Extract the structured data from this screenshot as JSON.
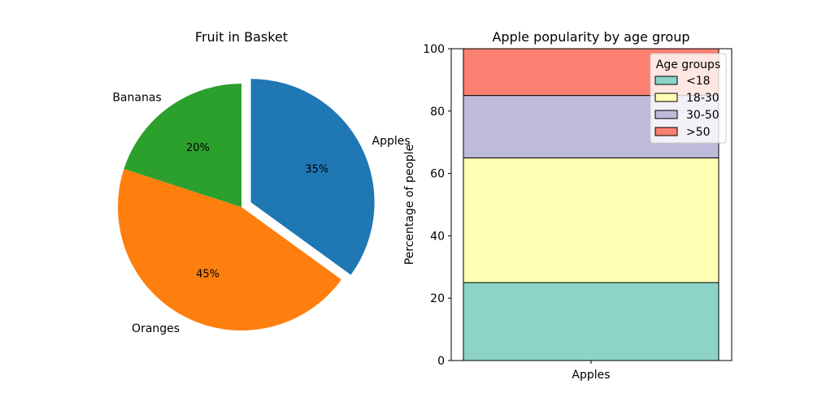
{
  "chart_data": [
    {
      "type": "pie",
      "title": "Fruit in Basket",
      "categories": [
        "Apples",
        "Oranges",
        "Bananas"
      ],
      "values": [
        35,
        45,
        20
      ],
      "value_labels": [
        "35%",
        "45%",
        "20%"
      ],
      "colors": [
        "#1f77b4",
        "#ff7f0e",
        "#2ca02c"
      ],
      "exploded": [
        "Apples"
      ],
      "start_angle_deg": 90,
      "direction": "clockwise"
    },
    {
      "type": "bar",
      "stacked": true,
      "title": "Apple popularity by age group",
      "xlabel": "",
      "ylabel": "Percentage of people",
      "categories": [
        "Apples"
      ],
      "ylim": [
        0,
        100
      ],
      "yticks": [
        0,
        20,
        40,
        60,
        80,
        100
      ],
      "legend": {
        "title": "Age groups",
        "placement": "top-right"
      },
      "series": [
        {
          "name": "<18",
          "values": [
            25
          ],
          "color": "#8dd3c7"
        },
        {
          "name": "18-30",
          "values": [
            40
          ],
          "color": "#ffffb3"
        },
        {
          "name": "30-50",
          "values": [
            20
          ],
          "color": "#bebada"
        },
        {
          "name": ">50",
          "values": [
            15
          ],
          "color": "#fb8072"
        }
      ]
    }
  ]
}
